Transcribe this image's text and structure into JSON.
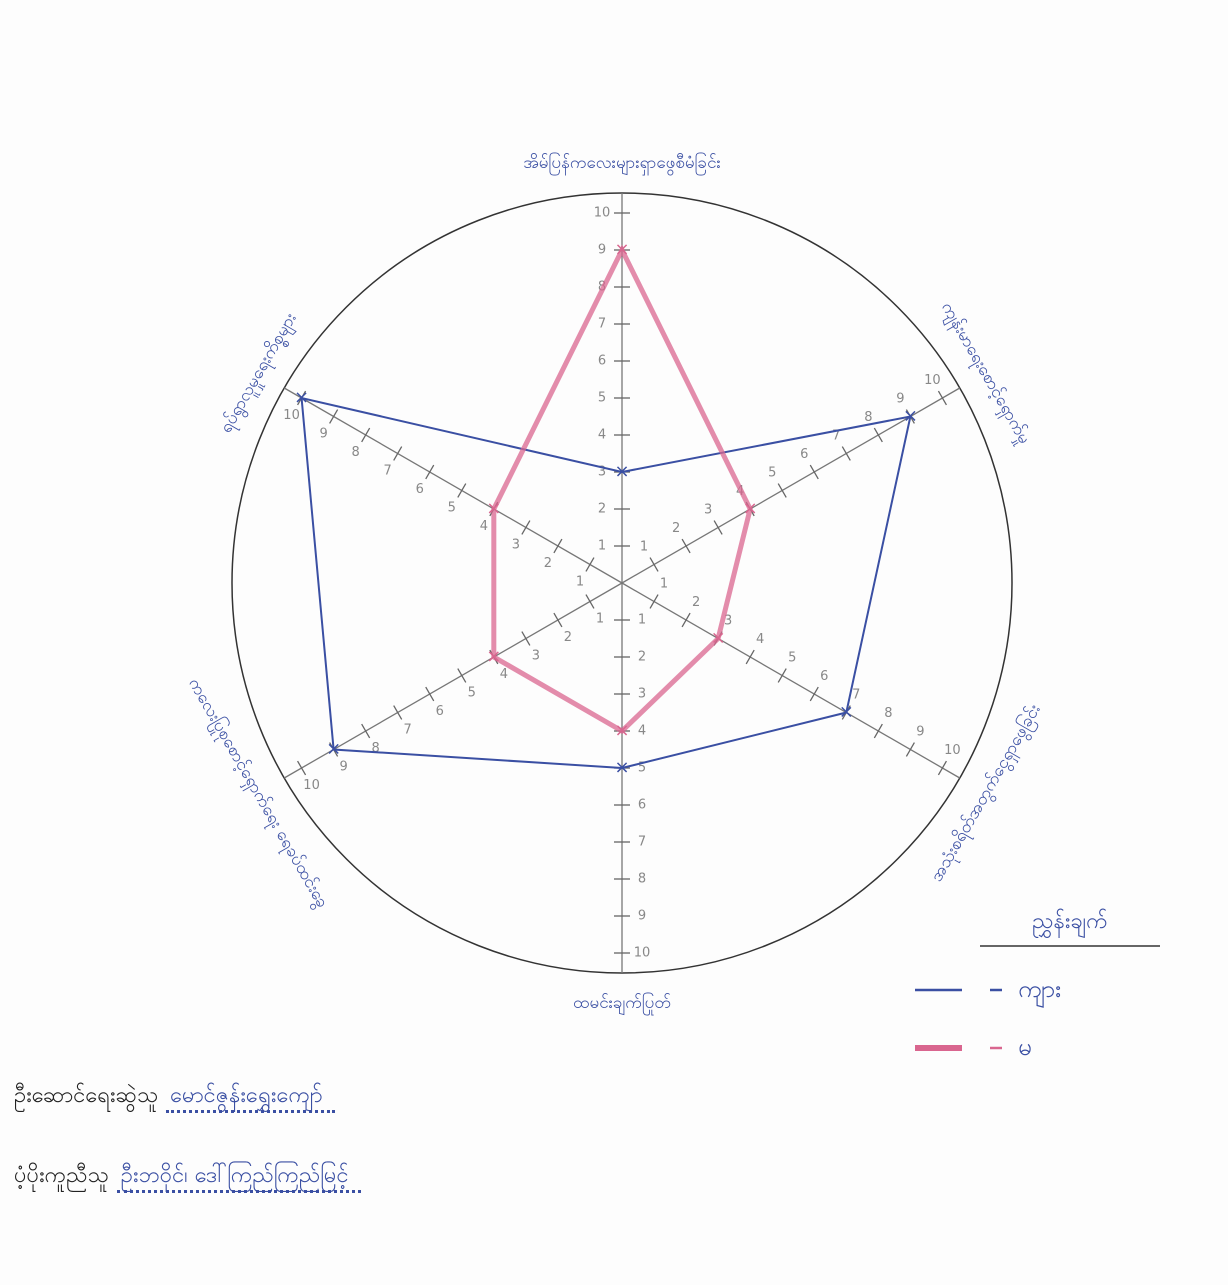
{
  "chart_data": {
    "type": "radar",
    "categories": [
      "အိမ်ပြန်ကလေးများရှာဖွေစီမံခြင်း",
      "ကျန်းမာရေးစောင့်ရှောက်မှု",
      "အသုံးစရိတ်အတွက်ငွေရှာဖွေခြင်း",
      "ထမင်းချက်ပြုတ်",
      "ကလေးပြုစုစောင့်ရှောက်ရေး ရေခပ်ထင်းခွေ",
      "ရပ်ရွာလူမှုရေးကိစ္စများ"
    ],
    "series": [
      {
        "name": "ကျား",
        "color": "#3a4fa3",
        "values": [
          3,
          9,
          7,
          5,
          9,
          10
        ]
      },
      {
        "name": "မ",
        "color": "#d9668f",
        "values": [
          9,
          4,
          3,
          4,
          4,
          4
        ]
      }
    ],
    "rlim": [
      0,
      10
    ],
    "rticks": [
      1,
      2,
      3,
      4,
      5,
      6,
      7,
      8,
      9,
      10
    ],
    "legend_title": "ညွှန်းချက်",
    "legend": "lower right"
  },
  "credits": [
    {
      "label": "ဦးဆောင်ရေးဆွဲသူ",
      "value": "မောင်ဇွန်းရွှေးကျော်"
    },
    {
      "label": "ပံ့ပိုးကူညီသူ",
      "value": "ဦးဘဝိုင်၊ ဒေါ်ကြည်ကြည်မြင့်"
    }
  ]
}
